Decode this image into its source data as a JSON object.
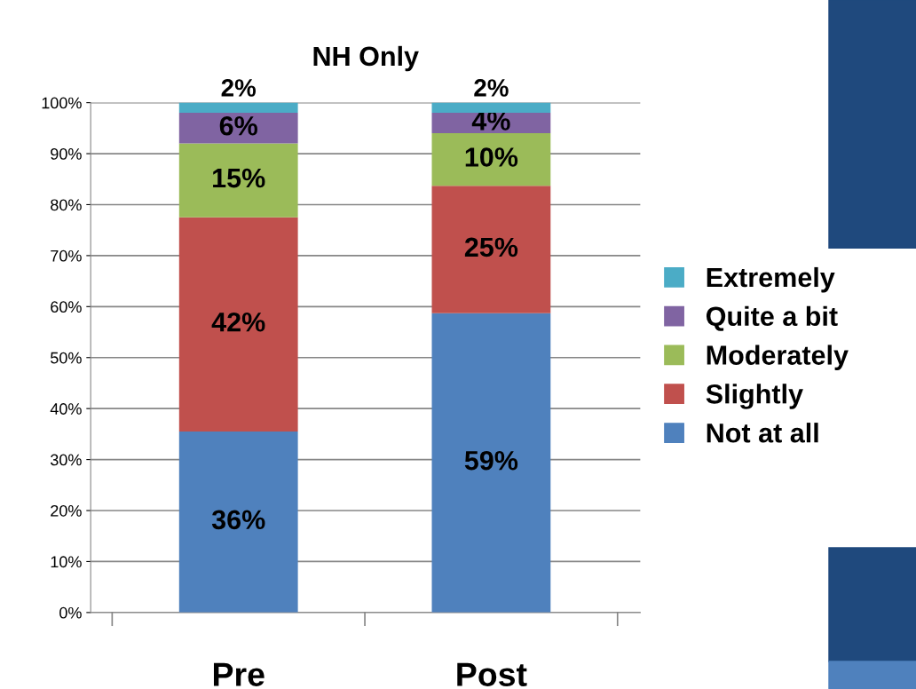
{
  "chart_data": {
    "type": "bar",
    "title": "NH Only",
    "stacked": true,
    "categories": [
      "Pre",
      "Post"
    ],
    "series": [
      {
        "name": "Not at all",
        "color": "#4f81bd",
        "values": [
          35.5,
          58.7
        ],
        "value_labels": [
          "36%",
          "59%"
        ]
      },
      {
        "name": "Slightly",
        "color": "#c0504d",
        "values": [
          42,
          25
        ],
        "value_labels": [
          "42%",
          "25%"
        ]
      },
      {
        "name": "Moderately",
        "color": "#9bbb59",
        "values": [
          14.5,
          10.3
        ],
        "value_labels": [
          "15%",
          "10%"
        ]
      },
      {
        "name": "Quite a bit",
        "color": "#8064a2",
        "values": [
          6,
          4
        ],
        "value_labels": [
          "6%",
          "4%"
        ]
      },
      {
        "name": "Extremely",
        "color": "#4bacc6",
        "values": [
          2,
          2
        ],
        "value_labels": [
          "2%",
          "2%"
        ]
      }
    ],
    "ylim": [
      0,
      100
    ],
    "yticks": [
      {
        "value": 0,
        "label": "0%"
      },
      {
        "value": 10,
        "label": "10%"
      },
      {
        "value": 20,
        "label": "20%"
      },
      {
        "value": 30,
        "label": "30%"
      },
      {
        "value": 40,
        "label": "40%"
      },
      {
        "value": 50,
        "label": "50%"
      },
      {
        "value": 60,
        "label": "60%"
      },
      {
        "value": 70,
        "label": "70%"
      },
      {
        "value": 80,
        "label": "80%"
      },
      {
        "value": 90,
        "label": "90%"
      },
      {
        "value": 100,
        "label": "100%"
      }
    ],
    "grid": "y",
    "legend": "right"
  }
}
